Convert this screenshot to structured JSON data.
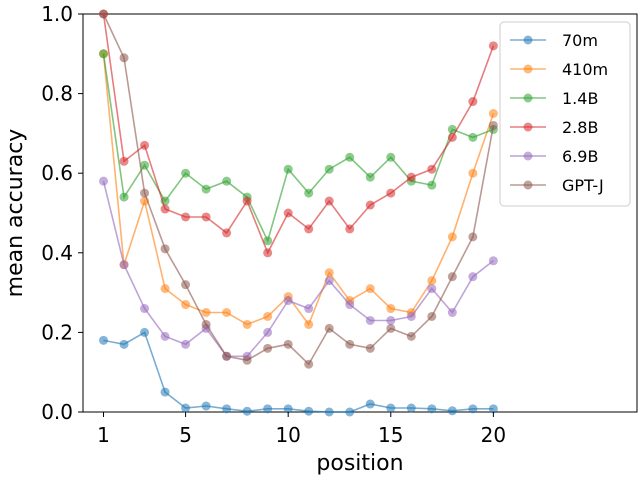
{
  "chart_data": {
    "type": "line",
    "xlabel": "position",
    "ylabel": "mean accuracy",
    "xlim": [
      0,
      27
    ],
    "ylim": [
      0,
      1.0
    ],
    "x_ticks": [
      1,
      5,
      10,
      15,
      20
    ],
    "y_ticks": [
      0.0,
      0.2,
      0.4,
      0.6,
      0.8,
      1.0
    ],
    "x_tick_labels": [
      "1",
      "5",
      "10",
      "15",
      "20"
    ],
    "y_tick_labels": [
      "0.0",
      "0.2",
      "0.4",
      "0.6",
      "0.8",
      "1.0"
    ],
    "legend_position": "top-right",
    "grid": false,
    "x": [
      1,
      2,
      3,
      4,
      5,
      6,
      7,
      8,
      9,
      10,
      11,
      12,
      13,
      14,
      15,
      16,
      17,
      18,
      19,
      20
    ],
    "series": [
      {
        "name": "70m",
        "color": "#1f77b4",
        "values": [
          0.18,
          0.17,
          0.2,
          0.05,
          0.01,
          0.015,
          0.008,
          0.002,
          0.008,
          0.008,
          0.002,
          0.0,
          0.0,
          0.02,
          0.01,
          0.01,
          0.008,
          0.003,
          0.008,
          0.008
        ]
      },
      {
        "name": "410m",
        "color": "#ff7f0e",
        "values": [
          0.9,
          0.37,
          0.53,
          0.31,
          0.27,
          0.25,
          0.25,
          0.22,
          0.24,
          0.29,
          0.22,
          0.35,
          0.28,
          0.31,
          0.26,
          0.25,
          0.33,
          0.44,
          0.6,
          0.75
        ]
      },
      {
        "name": "1.4B",
        "color": "#2ca02c",
        "values": [
          0.9,
          0.54,
          0.62,
          0.53,
          0.6,
          0.56,
          0.58,
          0.54,
          0.43,
          0.61,
          0.55,
          0.61,
          0.64,
          0.59,
          0.64,
          0.58,
          0.57,
          0.71,
          0.69,
          0.71
        ]
      },
      {
        "name": "2.8B",
        "color": "#d62728",
        "values": [
          1.0,
          0.63,
          0.67,
          0.51,
          0.49,
          0.49,
          0.45,
          0.53,
          0.4,
          0.5,
          0.46,
          0.53,
          0.46,
          0.52,
          0.55,
          0.59,
          0.61,
          0.69,
          0.78,
          0.92
        ]
      },
      {
        "name": "6.9B",
        "color": "#9467bd",
        "values": [
          0.58,
          0.37,
          0.26,
          0.19,
          0.17,
          0.21,
          0.14,
          0.14,
          0.2,
          0.28,
          0.26,
          0.33,
          0.27,
          0.23,
          0.23,
          0.24,
          0.31,
          0.25,
          0.34,
          0.38
        ]
      },
      {
        "name": "GPT-J",
        "color": "#8c564b",
        "values": [
          1.0,
          0.89,
          0.55,
          0.41,
          0.32,
          0.22,
          0.14,
          0.13,
          0.16,
          0.17,
          0.12,
          0.21,
          0.17,
          0.16,
          0.21,
          0.19,
          0.24,
          0.34,
          0.44,
          0.72
        ]
      }
    ]
  }
}
